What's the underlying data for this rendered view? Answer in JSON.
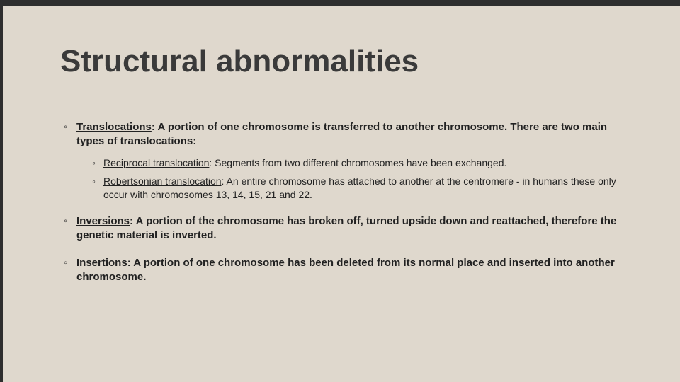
{
  "background_color": "#dfd8cd",
  "edge_color": "#2e2e2e",
  "title": {
    "text": "Structural abnormalities",
    "color": "#3a3a3a",
    "fontsize": 44,
    "fontweight": 700
  },
  "body_fontsize_l1": 15,
  "body_fontsize_l2": 14,
  "items": [
    {
      "term": "Translocations",
      "desc": ": A portion of one chromosome is transferred to another chromosome. There are two main types of translocations:",
      "sub": [
        {
          "term": "Reciprocal translocation",
          "desc": ": Segments from two different chromosomes have been exchanged."
        },
        {
          "term": "Robertsonian translocation",
          "desc": ": An entire chromosome has attached to another at the centromere - in humans these only occur with chromosomes 13, 14, 15, 21 and 22."
        }
      ]
    },
    {
      "term": "Inversions",
      "desc": ": A portion of the chromosome has broken off, turned upside down and reattached, therefore the genetic material is inverted."
    },
    {
      "term": "Insertions",
      "desc": ": A portion of one chromosome has been deleted from its normal place and inserted into another chromosome."
    }
  ]
}
